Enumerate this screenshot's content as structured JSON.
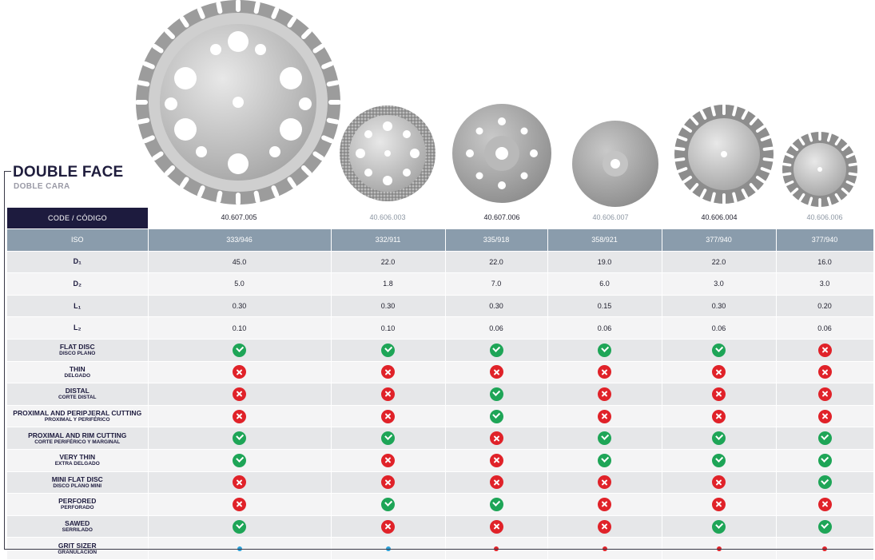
{
  "title": "DOUBLE FACE",
  "subtitle": "DOBLE CARA",
  "code_header": "CODE / CÓDIGO",
  "products": [
    {
      "code": "40.607.005",
      "iso": "333/946",
      "d1": "45.0",
      "d2": "5.0",
      "l1": "0.30",
      "l2": "0.10",
      "grit_color": "#2aa0d8"
    },
    {
      "code": "40.606.003",
      "iso": "332/911",
      "d1": "22.0",
      "d2": "1.8",
      "l1": "0.30",
      "l2": "0.10",
      "grit_color": "#2aa0d8"
    },
    {
      "code": "40.607.006",
      "iso": "335/918",
      "d1": "22.0",
      "d2": "7.0",
      "l1": "0.30",
      "l2": "0.06",
      "grit_color": "#e02229"
    },
    {
      "code": "40.606.007",
      "iso": "358/921",
      "d1": "19.0",
      "d2": "6.0",
      "l1": "0.15",
      "l2": "0.06",
      "grit_color": "#e02229"
    },
    {
      "code": "40.606.004",
      "iso": "377/940",
      "d1": "22.0",
      "d2": "3.0",
      "l1": "0.30",
      "l2": "0.06",
      "grit_color": "#e02229"
    },
    {
      "code": "40.606.006",
      "iso": "377/940",
      "d1": "16.0",
      "d2": "3.0",
      "l1": "0.20",
      "l2": "0.06",
      "grit_color": "#e02229"
    }
  ],
  "labels": {
    "iso": "ISO",
    "d1": "D₁",
    "d2": "D₂",
    "l1": "L₁",
    "l2": "L₂",
    "grit_main": "GRIT SIZER",
    "grit_sub": "GRANULACIÓN"
  },
  "features": [
    {
      "main": "FLAT DISC",
      "sub": "DISCO PLANO",
      "values": [
        true,
        true,
        true,
        true,
        true,
        false
      ]
    },
    {
      "main": "THIN",
      "sub": "DELGADO",
      "values": [
        false,
        false,
        false,
        false,
        false,
        false
      ]
    },
    {
      "main": "DISTAL",
      "sub": "CORTE DISTAL",
      "values": [
        false,
        false,
        true,
        false,
        false,
        false
      ]
    },
    {
      "main": "PROXIMAL AND PERIPJERAL CUTTING",
      "sub": "PROXIMAL Y PERIFÉRICO",
      "values": [
        false,
        false,
        true,
        false,
        false,
        false
      ]
    },
    {
      "main": "PROXIMAL AND RIM CUTTING",
      "sub": "CORTE PERIFÉRICO Y MARGINAL",
      "values": [
        true,
        true,
        false,
        true,
        true,
        true
      ]
    },
    {
      "main": "VERY THIN",
      "sub": "EXTRA DELGADO",
      "values": [
        true,
        false,
        false,
        true,
        true,
        true
      ]
    },
    {
      "main": "MINI FLAT DISC",
      "sub": "DISCO PLANO MINI",
      "values": [
        false,
        false,
        false,
        false,
        false,
        true
      ]
    },
    {
      "main": "PERFORED",
      "sub": "PERFORADO",
      "values": [
        false,
        true,
        true,
        false,
        false,
        false
      ]
    },
    {
      "main": "SAWED",
      "sub": "SERRILADO",
      "values": [
        true,
        false,
        false,
        false,
        true,
        true
      ]
    }
  ],
  "colors": {
    "header_bg": "#8a9cac",
    "code_box": "#1d1b3e",
    "check": "#1ea557",
    "cross": "#e02229"
  }
}
